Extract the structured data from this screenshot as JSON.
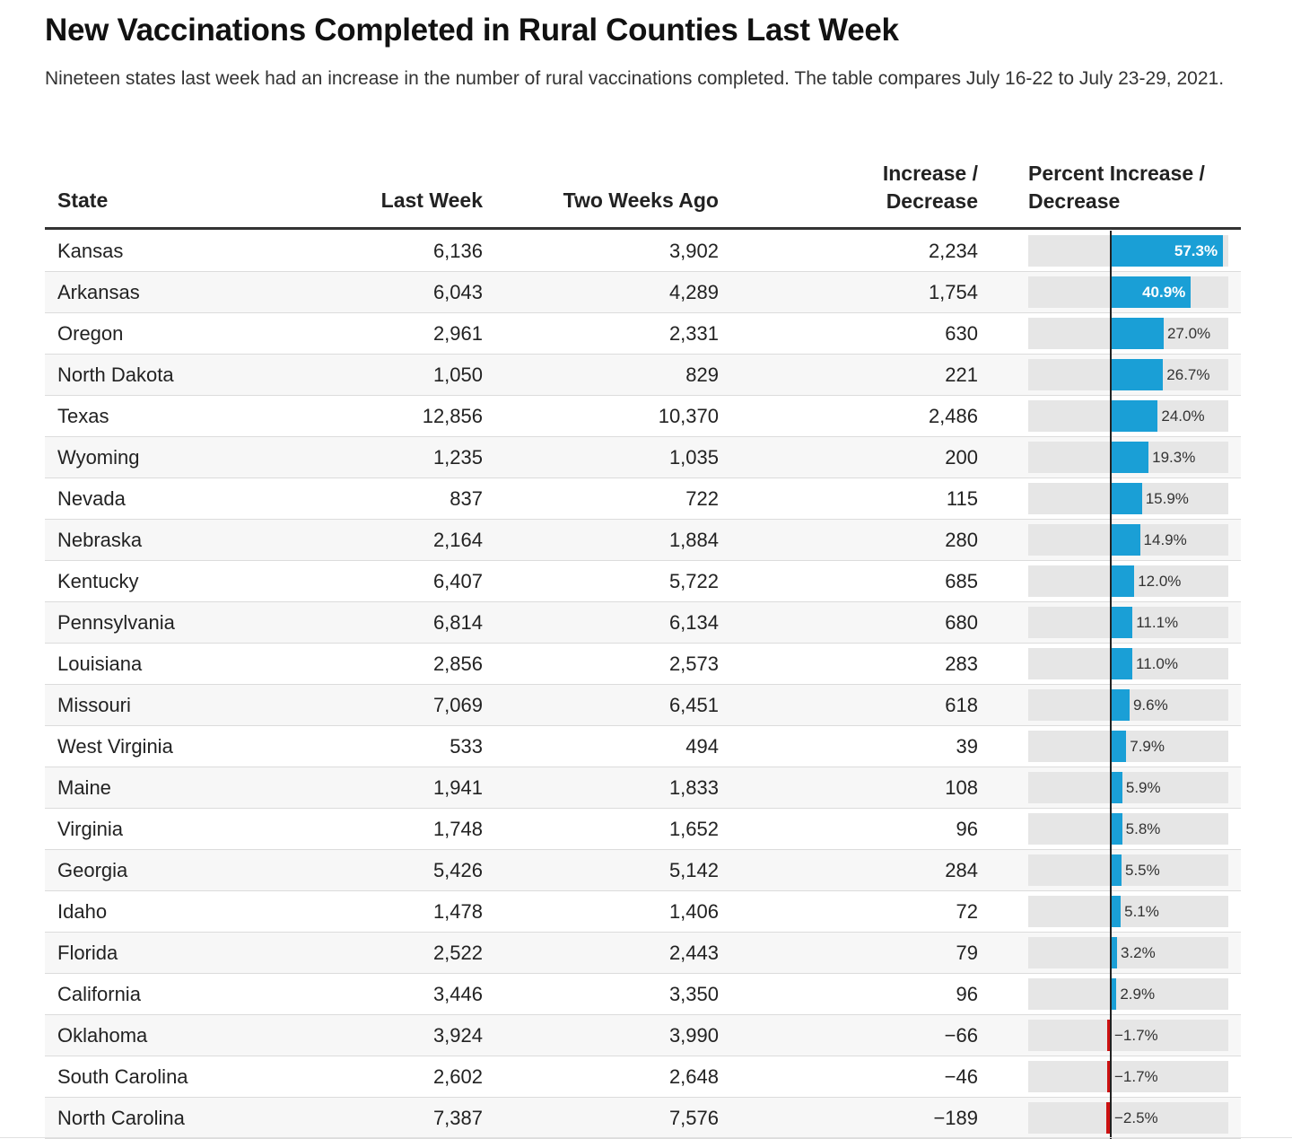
{
  "title": "New Vaccinations Completed in Rural Counties Last Week",
  "subtitle": "Nineteen states last week had an increase in the number of rural vaccinations completed. The table compares July 16-22 to July 23-29, 2021.",
  "headers": {
    "state": "State",
    "last_week": "Last Week",
    "two_weeks_ago": "Two Weeks Ago",
    "increase_line1": "Increase /",
    "increase_line2": "Decrease",
    "percent_line1": "Percent Increase /",
    "percent_line2": "Decrease"
  },
  "colors": {
    "positive": "#1a9fd6",
    "negative": "#cc1111",
    "track": "#e6e6e6"
  },
  "chart_data": {
    "type": "table",
    "columns": [
      "State",
      "Last Week",
      "Two Weeks Ago",
      "Increase / Decrease",
      "Percent Increase / Decrease"
    ],
    "rows": [
      {
        "state": "Kansas",
        "last_week": "6,136",
        "two_weeks_ago": "3,902",
        "change": "2,234",
        "pct": 57.3,
        "pct_label": "57.3%"
      },
      {
        "state": "Arkansas",
        "last_week": "6,043",
        "two_weeks_ago": "4,289",
        "change": "1,754",
        "pct": 40.9,
        "pct_label": "40.9%"
      },
      {
        "state": "Oregon",
        "last_week": "2,961",
        "two_weeks_ago": "2,331",
        "change": "630",
        "pct": 27.0,
        "pct_label": "27.0%"
      },
      {
        "state": "North Dakota",
        "last_week": "1,050",
        "two_weeks_ago": "829",
        "change": "221",
        "pct": 26.7,
        "pct_label": "26.7%"
      },
      {
        "state": "Texas",
        "last_week": "12,856",
        "two_weeks_ago": "10,370",
        "change": "2,486",
        "pct": 24.0,
        "pct_label": "24.0%"
      },
      {
        "state": "Wyoming",
        "last_week": "1,235",
        "two_weeks_ago": "1,035",
        "change": "200",
        "pct": 19.3,
        "pct_label": "19.3%"
      },
      {
        "state": "Nevada",
        "last_week": "837",
        "two_weeks_ago": "722",
        "change": "115",
        "pct": 15.9,
        "pct_label": "15.9%"
      },
      {
        "state": "Nebraska",
        "last_week": "2,164",
        "two_weeks_ago": "1,884",
        "change": "280",
        "pct": 14.9,
        "pct_label": "14.9%"
      },
      {
        "state": "Kentucky",
        "last_week": "6,407",
        "two_weeks_ago": "5,722",
        "change": "685",
        "pct": 12.0,
        "pct_label": "12.0%"
      },
      {
        "state": "Pennsylvania",
        "last_week": "6,814",
        "two_weeks_ago": "6,134",
        "change": "680",
        "pct": 11.1,
        "pct_label": "11.1%"
      },
      {
        "state": "Louisiana",
        "last_week": "2,856",
        "two_weeks_ago": "2,573",
        "change": "283",
        "pct": 11.0,
        "pct_label": "11.0%"
      },
      {
        "state": "Missouri",
        "last_week": "7,069",
        "two_weeks_ago": "6,451",
        "change": "618",
        "pct": 9.6,
        "pct_label": "9.6%"
      },
      {
        "state": "West Virginia",
        "last_week": "533",
        "two_weeks_ago": "494",
        "change": "39",
        "pct": 7.9,
        "pct_label": "7.9%"
      },
      {
        "state": "Maine",
        "last_week": "1,941",
        "two_weeks_ago": "1,833",
        "change": "108",
        "pct": 5.9,
        "pct_label": "5.9%"
      },
      {
        "state": "Virginia",
        "last_week": "1,748",
        "two_weeks_ago": "1,652",
        "change": "96",
        "pct": 5.8,
        "pct_label": "5.8%"
      },
      {
        "state": "Georgia",
        "last_week": "5,426",
        "two_weeks_ago": "5,142",
        "change": "284",
        "pct": 5.5,
        "pct_label": "5.5%"
      },
      {
        "state": "Idaho",
        "last_week": "1,478",
        "two_weeks_ago": "1,406",
        "change": "72",
        "pct": 5.1,
        "pct_label": "5.1%"
      },
      {
        "state": "Florida",
        "last_week": "2,522",
        "two_weeks_ago": "2,443",
        "change": "79",
        "pct": 3.2,
        "pct_label": "3.2%"
      },
      {
        "state": "California",
        "last_week": "3,446",
        "two_weeks_ago": "3,350",
        "change": "96",
        "pct": 2.9,
        "pct_label": "2.9%"
      },
      {
        "state": "Oklahoma",
        "last_week": "3,924",
        "two_weeks_ago": "3,990",
        "change": "−66",
        "pct": -1.7,
        "pct_label": "−1.7%"
      },
      {
        "state": "South Carolina",
        "last_week": "2,602",
        "two_weeks_ago": "2,648",
        "change": "−46",
        "pct": -1.7,
        "pct_label": "−1.7%"
      },
      {
        "state": "North Carolina",
        "last_week": "7,387",
        "two_weeks_ago": "7,576",
        "change": "−189",
        "pct": -2.5,
        "pct_label": "−2.5%"
      }
    ]
  }
}
